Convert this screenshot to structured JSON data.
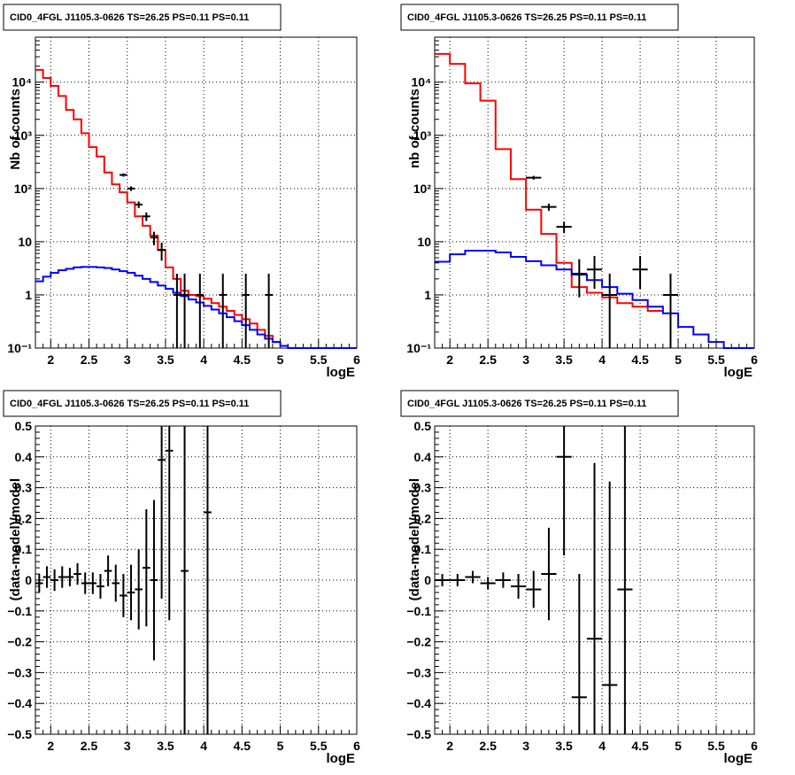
{
  "chart_data": [
    {
      "type": "line",
      "title": "CID0_4FGL J1105.3-0626 TS=26.25 PS=0.11 PS=0.11",
      "xlabel": "logE",
      "ylabel": "Nb of counts",
      "xlim": [
        1.8,
        6
      ],
      "ylim": [
        0.1,
        70000
      ],
      "yscale": "log",
      "grid": true,
      "xticks": [
        "2",
        "2.5",
        "3",
        "3.5",
        "4",
        "4.5",
        "5",
        "5.5",
        "6"
      ],
      "yticks": [
        "10⁻¹",
        "1",
        "10",
        "10²",
        "10³",
        "10⁴"
      ],
      "bin_width": 0.1,
      "series": [
        {
          "color": "#ff0000",
          "style": "step",
          "x": [
            1.85,
            1.95,
            2.05,
            2.15,
            2.25,
            2.35,
            2.45,
            2.55,
            2.65,
            2.75,
            2.85,
            2.95,
            3.05,
            3.15,
            3.25,
            3.35,
            3.45,
            3.55,
            3.65,
            3.75,
            3.85,
            3.95,
            4.05,
            4.15,
            4.25,
            4.35,
            4.45,
            4.55,
            4.65,
            4.75,
            4.85,
            4.95
          ],
          "values": [
            17000,
            12000,
            8500,
            5500,
            3000,
            2000,
            1100,
            600,
            400,
            200,
            120,
            85,
            55,
            30,
            20,
            13,
            7,
            3.3,
            2,
            1.2,
            1,
            0.95,
            0.85,
            0.7,
            0.6,
            0.5,
            0.42,
            0.35,
            0.29,
            0.22,
            0.17,
            0.13
          ]
        },
        {
          "color": "#0000ff",
          "style": "step",
          "x": [
            1.85,
            1.95,
            2.05,
            2.15,
            2.25,
            2.35,
            2.45,
            2.55,
            2.65,
            2.75,
            2.85,
            2.95,
            3.05,
            3.15,
            3.25,
            3.35,
            3.45,
            3.55,
            3.65,
            3.75,
            3.85,
            3.95,
            4.05,
            4.15,
            4.25,
            4.35,
            4.45,
            4.55,
            4.65,
            4.75,
            4.85,
            4.95,
            5.05,
            5.15,
            5.25,
            5.35,
            5.45,
            5.55,
            5.65,
            5.75,
            5.85,
            5.95
          ],
          "values": [
            1.8,
            2.2,
            2.6,
            2.9,
            3.1,
            3.3,
            3.35,
            3.35,
            3.3,
            3.2,
            3.0,
            2.8,
            2.6,
            2.3,
            2.0,
            1.75,
            1.5,
            1.3,
            1.1,
            0.95,
            0.82,
            0.72,
            0.62,
            0.53,
            0.45,
            0.38,
            0.32,
            0.27,
            0.22,
            0.18,
            0.15,
            0.13,
            0.11,
            0.1,
            0.1,
            0.1,
            0.1,
            0.1,
            0.1,
            0.1,
            0.1,
            0.1
          ]
        },
        {
          "color": "#000000",
          "style": "errorbar",
          "x": [
            2.95,
            3.05,
            3.15,
            3.25,
            3.35,
            3.45,
            3.65,
            3.75,
            3.95,
            4.25,
            4.55,
            4.85
          ],
          "values": [
            180,
            100,
            50,
            30,
            12,
            7,
            1,
            1,
            1,
            1,
            1,
            1
          ],
          "err_low": [
            13,
            10,
            7,
            5.5,
            3.4,
            2.6,
            0.9,
            0.9,
            0.9,
            0.9,
            0.9,
            0.9
          ],
          "err_high": [
            13,
            10,
            7,
            5.5,
            3.4,
            2.6,
            1.5,
            1.5,
            1.5,
            1.5,
            1.5,
            1.5
          ]
        }
      ]
    },
    {
      "type": "line",
      "title": "CID0_4FGL J1105.3-0626 TS=26.25 PS=0.11 PS=0.11",
      "xlabel": "logE",
      "ylabel": "nb of counts",
      "xlim": [
        1.8,
        6
      ],
      "ylim": [
        0.1,
        70000
      ],
      "yscale": "log",
      "grid": true,
      "xticks": [
        "2",
        "2.5",
        "3",
        "3.5",
        "4",
        "4.5",
        "5",
        "5.5",
        "6"
      ],
      "yticks": [
        "10⁻¹",
        "1",
        "10",
        "10²",
        "10³",
        "10⁴"
      ],
      "bin_width": 0.2,
      "series": [
        {
          "color": "#ff0000",
          "style": "step",
          "x": [
            1.9,
            2.1,
            2.3,
            2.5,
            2.7,
            2.9,
            3.1,
            3.3,
            3.5,
            3.7,
            3.9,
            4.1,
            4.3,
            4.5,
            4.7
          ],
          "values": [
            34000,
            22000,
            9500,
            4500,
            550,
            150,
            40,
            14,
            4,
            1.4,
            1.1,
            0.9,
            0.7,
            0.6,
            0.5
          ]
        },
        {
          "color": "#0000ff",
          "style": "step",
          "x": [
            1.9,
            2.1,
            2.3,
            2.5,
            2.7,
            2.9,
            3.1,
            3.3,
            3.5,
            3.7,
            3.9,
            4.1,
            4.3,
            4.5,
            4.7,
            4.9,
            5.1,
            5.3,
            5.5,
            5.7,
            5.9
          ],
          "values": [
            4.2,
            5.8,
            6.8,
            6.8,
            6.3,
            5.2,
            4.3,
            3.6,
            3.0,
            2.4,
            1.9,
            1.4,
            1.05,
            0.8,
            0.6,
            0.45,
            0.25,
            0.18,
            0.13,
            0.1,
            0.1
          ]
        },
        {
          "color": "#000000",
          "style": "errorbar",
          "x": [
            3.1,
            3.3,
            3.5,
            3.7,
            3.9,
            4.1,
            4.5,
            4.9
          ],
          "values": [
            160,
            45,
            19,
            2.5,
            3,
            1,
            3,
            1
          ],
          "err_low": [
            13,
            7,
            4.5,
            1.6,
            1.7,
            0.9,
            1.7,
            0.9
          ],
          "err_high": [
            13,
            7,
            4.5,
            2.2,
            2.4,
            1.5,
            2.4,
            1.5
          ]
        }
      ]
    },
    {
      "type": "scatter",
      "title": "CID0_4FGL J1105.3-0626 TS=26.25 PS=0.11 PS=0.11",
      "xlabel": "logE",
      "ylabel": "(data-model)/model",
      "xlim": [
        1.8,
        6
      ],
      "ylim": [
        -0.5,
        0.5
      ],
      "grid": true,
      "xticks": [
        "2",
        "2.5",
        "3",
        "3.5",
        "4",
        "4.5",
        "5",
        "5.5",
        "6"
      ],
      "yticks": [
        "−0.5",
        "−0.4",
        "−0.3",
        "−0.2",
        "−0.1",
        "0",
        "0.1",
        "0.2",
        "0.3",
        "0.4",
        "0.5"
      ],
      "bin_width": 0.1,
      "series": [
        {
          "color": "#000000",
          "style": "errorbar",
          "x": [
            1.85,
            1.95,
            2.05,
            2.15,
            2.25,
            2.35,
            2.45,
            2.55,
            2.65,
            2.75,
            2.85,
            2.95,
            3.05,
            3.15,
            3.25,
            3.35,
            3.45,
            3.55,
            3.75,
            4.05
          ],
          "values": [
            -0.01,
            0.01,
            -0.0,
            0.01,
            0.01,
            0.02,
            -0.01,
            -0.01,
            -0.02,
            0.03,
            -0.01,
            -0.05,
            -0.04,
            -0.03,
            0.04,
            -0.0,
            0.39,
            0.42,
            0.03,
            0.22
          ],
          "err": [
            0.03,
            0.035,
            0.035,
            0.035,
            0.03,
            0.035,
            0.035,
            0.035,
            0.04,
            0.05,
            0.06,
            0.07,
            0.09,
            0.13,
            0.19,
            0.26,
            0.45,
            0.55,
            1.2,
            1.2
          ]
        }
      ]
    },
    {
      "type": "scatter",
      "title": "CID0_4FGL J1105.3-0626 TS=26.25 PS=0.11 PS=0.11",
      "xlabel": "logE",
      "ylabel": "(data-model)/model",
      "xlim": [
        1.8,
        6
      ],
      "ylim": [
        -0.5,
        0.5
      ],
      "grid": true,
      "xticks": [
        "2",
        "2.5",
        "3",
        "3.5",
        "4",
        "4.5",
        "5",
        "5.5",
        "6"
      ],
      "yticks": [
        "−0.5",
        "−0.4",
        "−0.3",
        "−0.2",
        "−0.1",
        "0",
        "0.1",
        "0.2",
        "0.3",
        "0.4",
        "0.5"
      ],
      "bin_width": 0.2,
      "series": [
        {
          "color": "#000000",
          "style": "errorbar",
          "x": [
            1.9,
            2.1,
            2.3,
            2.5,
            2.7,
            2.9,
            3.1,
            3.3,
            3.5,
            3.7,
            3.9,
            4.1,
            4.3
          ],
          "values": [
            0.0,
            0.0,
            0.01,
            -0.01,
            0.0,
            -0.02,
            -0.03,
            0.02,
            0.4,
            -0.38,
            -0.19,
            -0.34,
            -0.03
          ],
          "err": [
            0.02,
            0.02,
            0.02,
            0.02,
            0.025,
            0.04,
            0.06,
            0.15,
            0.32,
            0.4,
            0.57,
            0.66,
            0.8
          ]
        }
      ]
    }
  ]
}
